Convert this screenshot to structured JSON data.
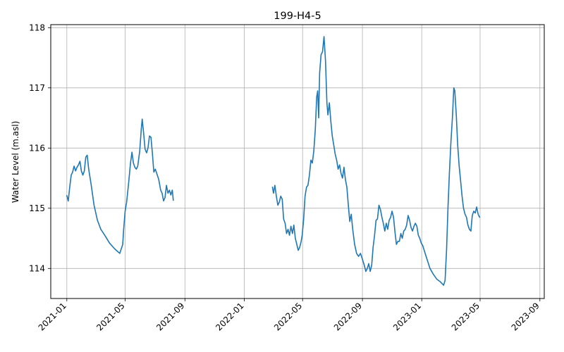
{
  "chart_data": {
    "type": "line",
    "title": "199-H4-5",
    "xlabel": "",
    "ylabel": "Water Level (m.asl)",
    "x_axis_type": "date",
    "xlim": [
      "2020-11-29",
      "2023-09-10"
    ],
    "ylim": [
      113.5,
      118.05
    ],
    "grid": true,
    "x_ticks": [
      "2021-01",
      "2021-05",
      "2021-09",
      "2022-01",
      "2022-05",
      "2022-09",
      "2023-01",
      "2023-05",
      "2023-09"
    ],
    "x_tick_dates": [
      "2021-01-01",
      "2021-05-01",
      "2021-09-01",
      "2022-01-01",
      "2022-05-01",
      "2022-09-01",
      "2023-01-01",
      "2023-05-01",
      "2023-09-01"
    ],
    "y_ticks": [
      114,
      115,
      116,
      117,
      118
    ],
    "series": [
      {
        "color": "#1f77b4",
        "segments": [
          [
            [
              "2021-01-01",
              115.21
            ],
            [
              "2021-01-04",
              115.12
            ],
            [
              "2021-01-07",
              115.35
            ],
            [
              "2021-01-10",
              115.55
            ],
            [
              "2021-01-13",
              115.6
            ],
            [
              "2021-01-16",
              115.7
            ],
            [
              "2021-01-19",
              115.62
            ],
            [
              "2021-01-22",
              115.68
            ],
            [
              "2021-01-25",
              115.72
            ],
            [
              "2021-01-28",
              115.78
            ],
            [
              "2021-01-31",
              115.62
            ],
            [
              "2021-02-03",
              115.55
            ],
            [
              "2021-02-06",
              115.62
            ],
            [
              "2021-02-09",
              115.85
            ],
            [
              "2021-02-12",
              115.88
            ],
            [
              "2021-02-15",
              115.65
            ],
            [
              "2021-02-20",
              115.4
            ],
            [
              "2021-02-26",
              115.05
            ],
            [
              "2021-03-05",
              114.8
            ],
            [
              "2021-03-12",
              114.65
            ],
            [
              "2021-03-20",
              114.55
            ],
            [
              "2021-03-30",
              114.42
            ],
            [
              "2021-04-10",
              114.32
            ],
            [
              "2021-04-20",
              114.25
            ],
            [
              "2021-04-26",
              114.4
            ],
            [
              "2021-04-28",
              114.65
            ],
            [
              "2021-05-01",
              114.95
            ],
            [
              "2021-05-04",
              115.1
            ],
            [
              "2021-05-08",
              115.4
            ],
            [
              "2021-05-12",
              115.75
            ],
            [
              "2021-05-15",
              115.93
            ],
            [
              "2021-05-18",
              115.75
            ],
            [
              "2021-05-21",
              115.68
            ],
            [
              "2021-05-24",
              115.65
            ],
            [
              "2021-05-27",
              115.7
            ],
            [
              "2021-05-31",
              115.95
            ],
            [
              "2021-06-03",
              116.3
            ],
            [
              "2021-06-05",
              116.48
            ],
            [
              "2021-06-08",
              116.25
            ],
            [
              "2021-06-11",
              115.98
            ],
            [
              "2021-06-14",
              115.92
            ],
            [
              "2021-06-17",
              116.0
            ],
            [
              "2021-06-20",
              116.2
            ],
            [
              "2021-06-23",
              116.18
            ],
            [
              "2021-06-26",
              115.92
            ],
            [
              "2021-06-29",
              115.6
            ],
            [
              "2021-07-02",
              115.65
            ],
            [
              "2021-07-05",
              115.58
            ],
            [
              "2021-07-09",
              115.48
            ],
            [
              "2021-07-13",
              115.3
            ],
            [
              "2021-07-16",
              115.25
            ],
            [
              "2021-07-19",
              115.12
            ],
            [
              "2021-07-22",
              115.18
            ],
            [
              "2021-07-25",
              115.38
            ],
            [
              "2021-07-28",
              115.25
            ],
            [
              "2021-07-31",
              115.3
            ],
            [
              "2021-08-03",
              115.22
            ],
            [
              "2021-08-06",
              115.3
            ],
            [
              "2021-08-08",
              115.13
            ]
          ],
          [
            [
              "2022-02-28",
              115.35
            ],
            [
              "2022-03-02",
              115.25
            ],
            [
              "2022-03-05",
              115.38
            ],
            [
              "2022-03-08",
              115.2
            ],
            [
              "2022-03-11",
              115.05
            ],
            [
              "2022-03-14",
              115.1
            ],
            [
              "2022-03-17",
              115.2
            ],
            [
              "2022-03-20",
              115.15
            ],
            [
              "2022-03-23",
              114.82
            ],
            [
              "2022-03-26",
              114.75
            ],
            [
              "2022-03-29",
              114.58
            ],
            [
              "2022-04-01",
              114.65
            ],
            [
              "2022-04-04",
              114.55
            ],
            [
              "2022-04-07",
              114.7
            ],
            [
              "2022-04-10",
              114.58
            ],
            [
              "2022-04-13",
              114.72
            ],
            [
              "2022-04-16",
              114.5
            ],
            [
              "2022-04-19",
              114.4
            ],
            [
              "2022-04-22",
              114.3
            ],
            [
              "2022-04-25",
              114.35
            ],
            [
              "2022-04-28",
              114.45
            ],
            [
              "2022-04-30",
              114.55
            ],
            [
              "2022-05-03",
              114.8
            ],
            [
              "2022-05-06",
              115.2
            ],
            [
              "2022-05-09",
              115.35
            ],
            [
              "2022-05-12",
              115.38
            ],
            [
              "2022-05-15",
              115.55
            ],
            [
              "2022-05-18",
              115.8
            ],
            [
              "2022-05-21",
              115.75
            ],
            [
              "2022-05-24",
              115.95
            ],
            [
              "2022-05-27",
              116.3
            ],
            [
              "2022-05-30",
              116.85
            ],
            [
              "2022-06-01",
              116.95
            ],
            [
              "2022-06-03",
              116.5
            ],
            [
              "2022-06-05",
              117.25
            ],
            [
              "2022-06-08",
              117.55
            ],
            [
              "2022-06-11",
              117.6
            ],
            [
              "2022-06-14",
              117.85
            ],
            [
              "2022-06-17",
              117.45
            ],
            [
              "2022-06-20",
              116.75
            ],
            [
              "2022-06-22",
              116.55
            ],
            [
              "2022-06-25",
              116.75
            ],
            [
              "2022-06-28",
              116.45
            ],
            [
              "2022-07-01",
              116.2
            ],
            [
              "2022-07-04",
              116.05
            ],
            [
              "2022-07-07",
              115.9
            ],
            [
              "2022-07-10",
              115.8
            ],
            [
              "2022-07-13",
              115.65
            ],
            [
              "2022-07-16",
              115.72
            ],
            [
              "2022-07-19",
              115.58
            ],
            [
              "2022-07-22",
              115.5
            ],
            [
              "2022-07-25",
              115.68
            ],
            [
              "2022-07-28",
              115.48
            ],
            [
              "2022-07-31",
              115.35
            ],
            [
              "2022-08-03",
              115.05
            ],
            [
              "2022-08-06",
              114.78
            ],
            [
              "2022-08-09",
              114.9
            ],
            [
              "2022-08-12",
              114.65
            ],
            [
              "2022-08-16",
              114.4
            ],
            [
              "2022-08-20",
              114.25
            ],
            [
              "2022-08-24",
              114.2
            ],
            [
              "2022-08-28",
              114.25
            ],
            [
              "2022-09-01",
              114.15
            ],
            [
              "2022-09-05",
              114.05
            ],
            [
              "2022-09-08",
              113.95
            ],
            [
              "2022-09-11",
              114.0
            ],
            [
              "2022-09-14",
              114.08
            ],
            [
              "2022-09-17",
              113.95
            ],
            [
              "2022-09-20",
              114.05
            ],
            [
              "2022-09-23",
              114.35
            ],
            [
              "2022-09-26",
              114.55
            ],
            [
              "2022-09-29",
              114.8
            ],
            [
              "2022-10-02",
              114.82
            ],
            [
              "2022-10-05",
              115.05
            ],
            [
              "2022-10-08",
              114.98
            ],
            [
              "2022-10-11",
              114.85
            ],
            [
              "2022-10-14",
              114.75
            ],
            [
              "2022-10-17",
              114.62
            ],
            [
              "2022-10-20",
              114.75
            ],
            [
              "2022-10-23",
              114.65
            ],
            [
              "2022-10-26",
              114.8
            ],
            [
              "2022-10-29",
              114.85
            ],
            [
              "2022-11-01",
              114.95
            ],
            [
              "2022-11-04",
              114.85
            ],
            [
              "2022-11-07",
              114.6
            ],
            [
              "2022-11-10",
              114.4
            ],
            [
              "2022-11-13",
              114.45
            ],
            [
              "2022-11-16",
              114.45
            ],
            [
              "2022-11-19",
              114.58
            ],
            [
              "2022-11-22",
              114.5
            ],
            [
              "2022-11-25",
              114.62
            ],
            [
              "2022-11-28",
              114.65
            ],
            [
              "2022-12-01",
              114.72
            ],
            [
              "2022-12-04",
              114.88
            ],
            [
              "2022-12-07",
              114.8
            ],
            [
              "2022-12-10",
              114.68
            ],
            [
              "2022-12-13",
              114.62
            ],
            [
              "2022-12-16",
              114.7
            ],
            [
              "2022-12-19",
              114.75
            ],
            [
              "2022-12-22",
              114.7
            ],
            [
              "2022-12-25",
              114.55
            ],
            [
              "2022-12-28",
              114.5
            ],
            [
              "2022-12-31",
              114.42
            ],
            [
              "2023-01-03",
              114.38
            ],
            [
              "2023-01-10",
              114.2
            ],
            [
              "2023-01-18",
              114.0
            ],
            [
              "2023-01-25",
              113.9
            ],
            [
              "2023-02-01",
              113.82
            ],
            [
              "2023-02-08",
              113.78
            ],
            [
              "2023-02-15",
              113.72
            ],
            [
              "2023-02-18",
              113.8
            ],
            [
              "2023-02-21",
              114.3
            ],
            [
              "2023-02-24",
              115.0
            ],
            [
              "2023-02-27",
              115.6
            ],
            [
              "2023-03-02",
              116.1
            ],
            [
              "2023-03-05",
              116.5
            ],
            [
              "2023-03-08",
              117.0
            ],
            [
              "2023-03-10",
              116.95
            ],
            [
              "2023-03-13",
              116.55
            ],
            [
              "2023-03-16",
              116.05
            ],
            [
              "2023-03-19",
              115.7
            ],
            [
              "2023-03-22",
              115.45
            ],
            [
              "2023-03-25",
              115.2
            ],
            [
              "2023-03-28",
              115.0
            ],
            [
              "2023-03-31",
              114.9
            ],
            [
              "2023-04-03",
              114.85
            ],
            [
              "2023-04-06",
              114.72
            ],
            [
              "2023-04-09",
              114.65
            ],
            [
              "2023-04-12",
              114.62
            ],
            [
              "2023-04-15",
              114.88
            ],
            [
              "2023-04-18",
              114.95
            ],
            [
              "2023-04-21",
              114.92
            ],
            [
              "2023-04-24",
              115.02
            ],
            [
              "2023-04-27",
              114.9
            ],
            [
              "2023-04-30",
              114.85
            ]
          ]
        ]
      }
    ]
  }
}
